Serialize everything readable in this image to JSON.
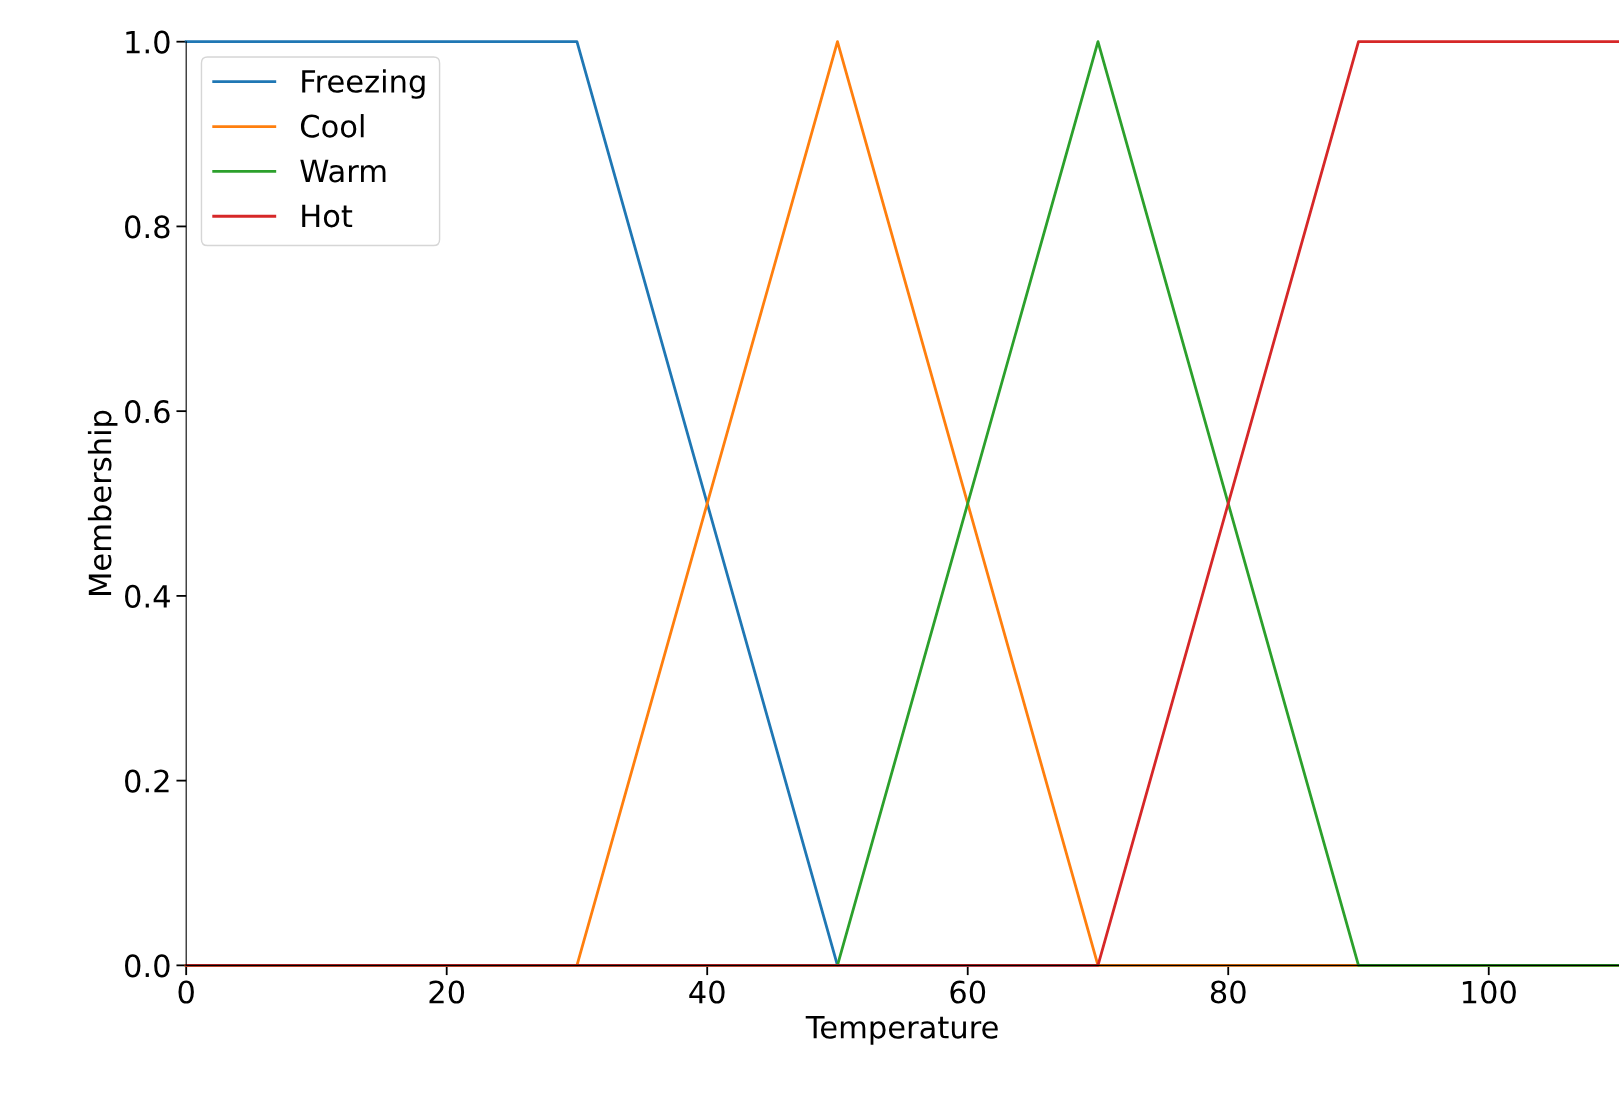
{
  "chart_data": {
    "type": "line",
    "xlabel": "Temperature",
    "ylabel": "Membership",
    "series": [
      {
        "name": "Freezing",
        "color": "#1f77b4",
        "x": [
          0,
          30,
          50,
          110
        ],
        "values": [
          1,
          1,
          0,
          0
        ]
      },
      {
        "name": "Cool",
        "color": "#ff7f0e",
        "x": [
          0,
          30,
          50,
          70,
          110
        ],
        "values": [
          0,
          0,
          1,
          0,
          0
        ]
      },
      {
        "name": "Warm",
        "color": "#2ca02c",
        "x": [
          0,
          50,
          70,
          90,
          110
        ],
        "values": [
          0,
          0,
          1,
          0,
          0
        ]
      },
      {
        "name": "Hot",
        "color": "#d62728",
        "x": [
          0,
          70,
          90,
          110
        ],
        "values": [
          0,
          0,
          1,
          1
        ]
      }
    ],
    "xlim": [
      0,
      110
    ],
    "ylim": [
      0,
      1
    ],
    "xticks": [
      0,
      20,
      40,
      60,
      80,
      100
    ],
    "yticks": [
      {
        "value": 0,
        "label": "0.0"
      },
      0.2,
      0.4,
      0.6,
      0.8,
      {
        "value": 1,
        "label": "1.0"
      }
    ],
    "legend": "top left",
    "grid": false
  }
}
